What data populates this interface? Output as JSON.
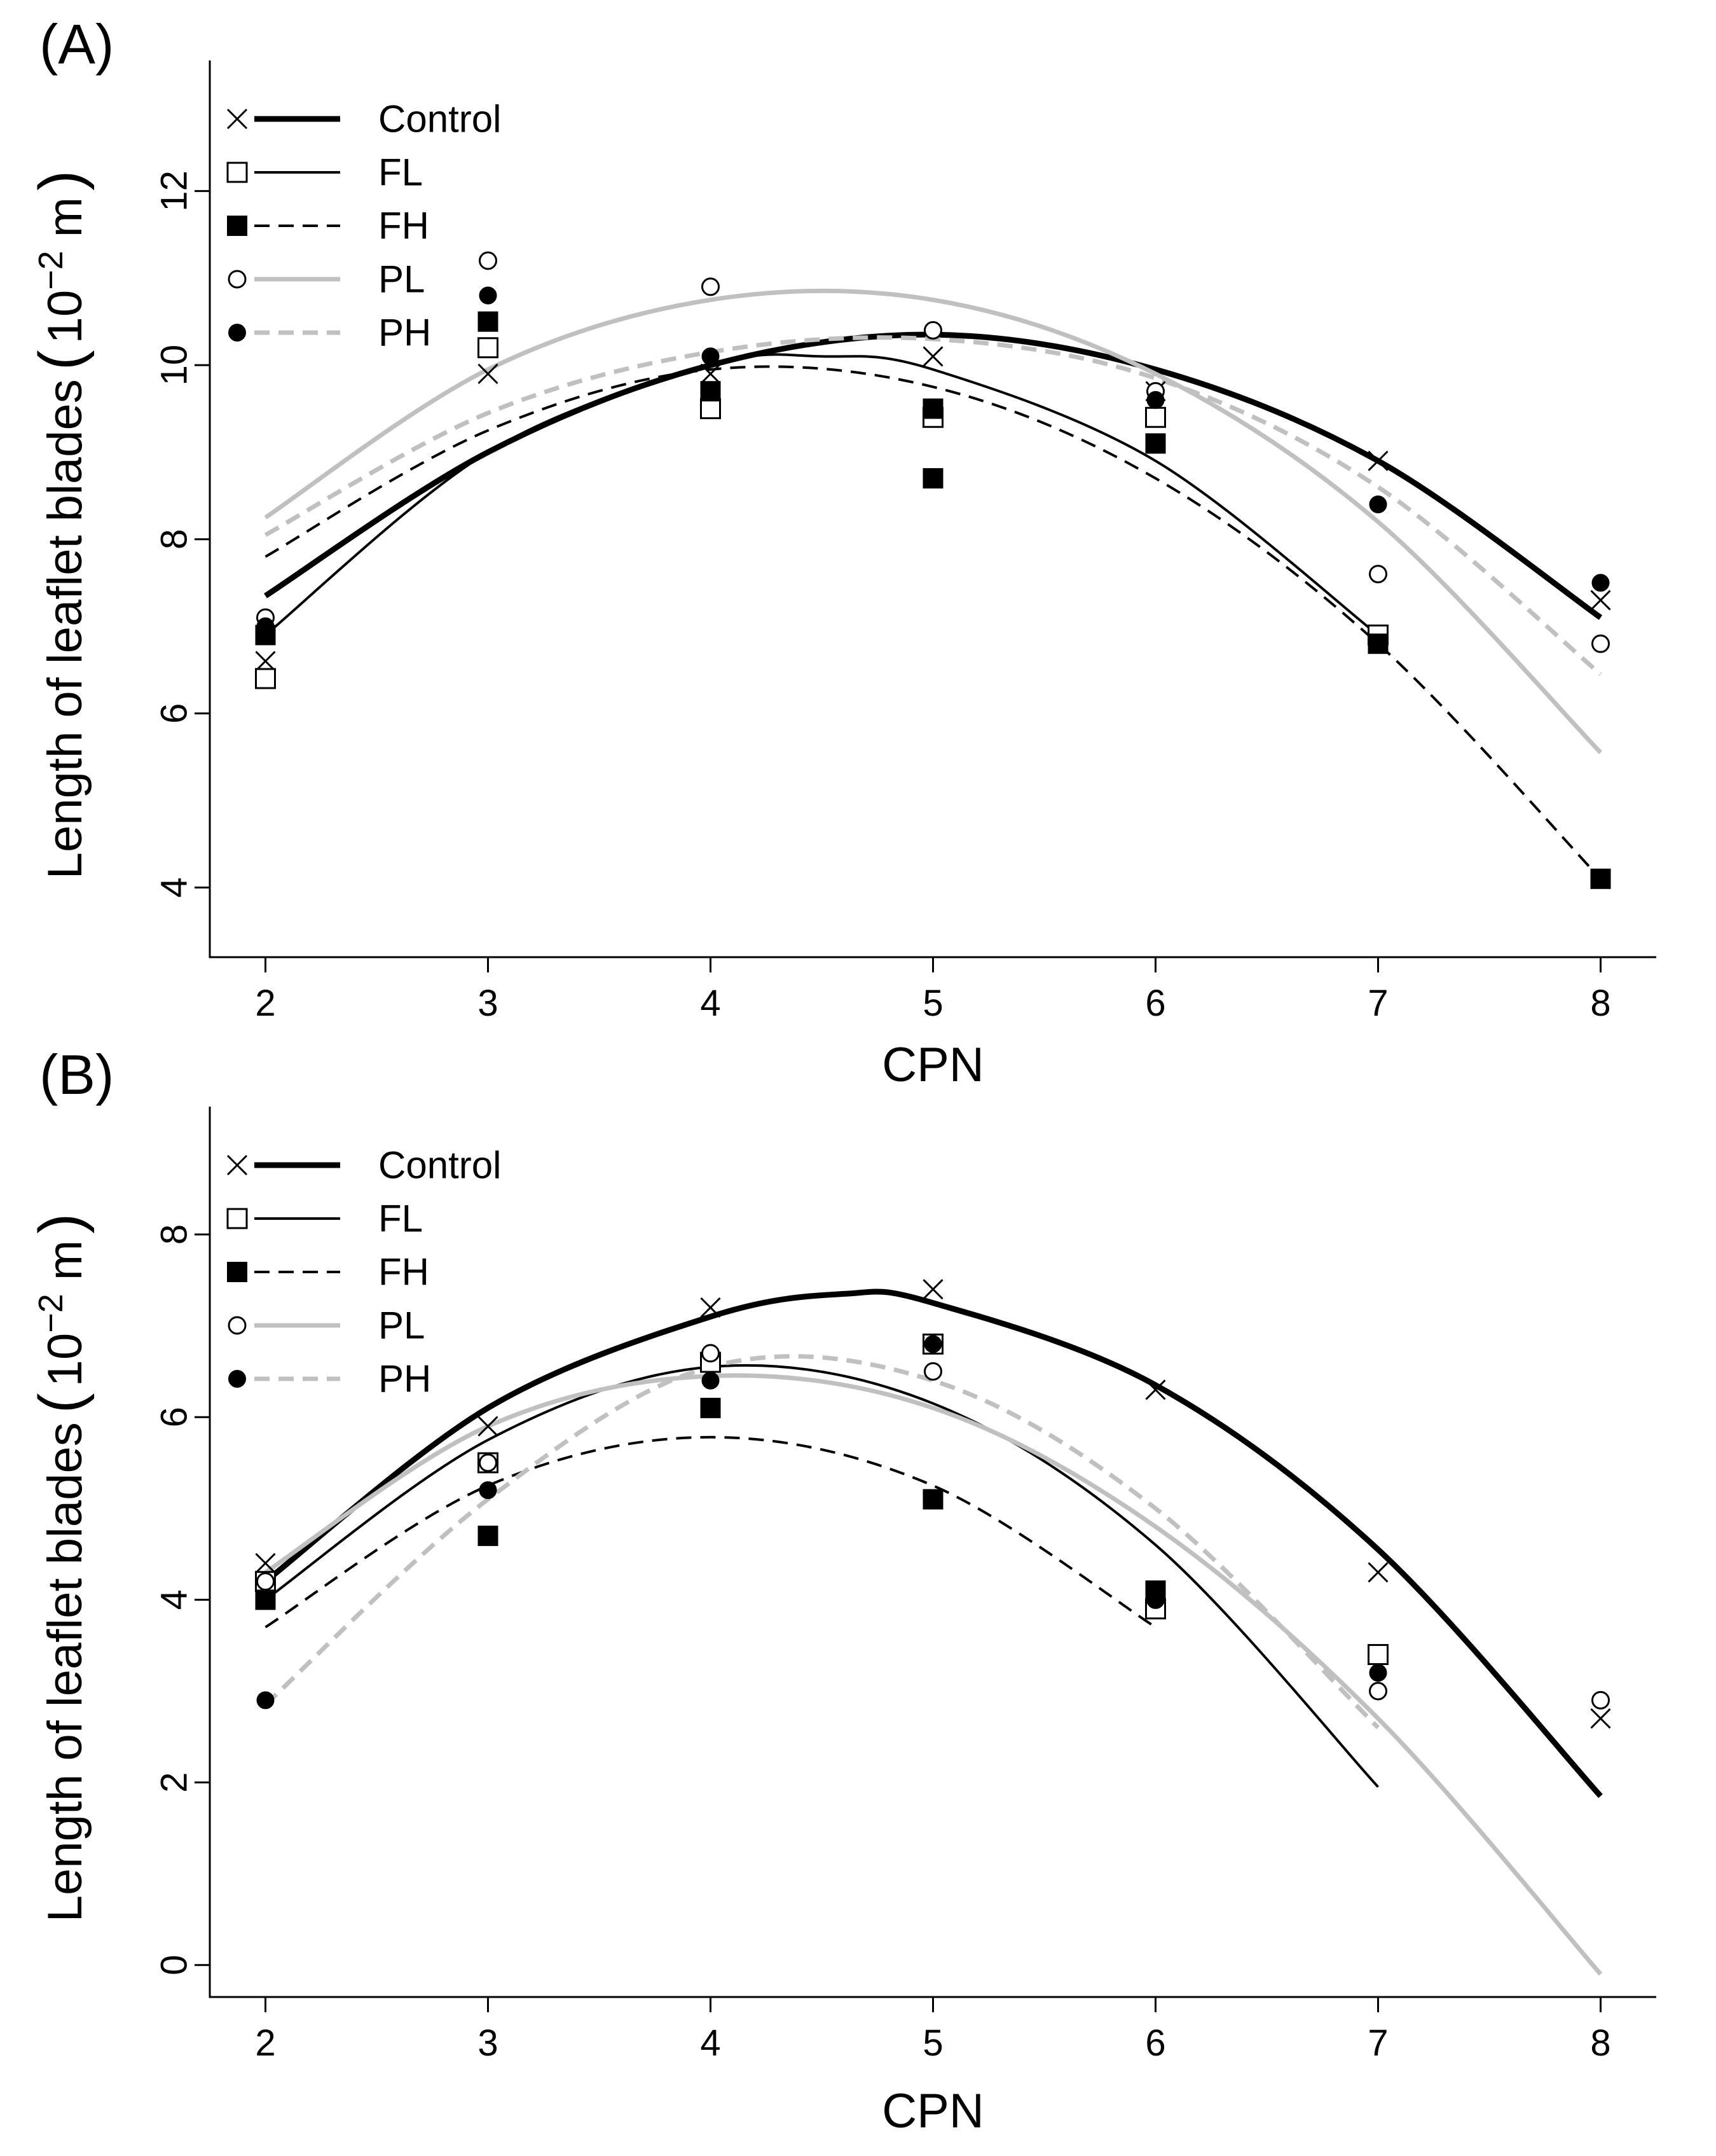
{
  "figure": {
    "xlabel": "CPN",
    "ylabel_text": "Length of leaflet blades",
    "ylabel_unit_base": "10",
    "ylabel_unit_exp": "−2",
    "ylabel_unit_suffix": " m",
    "paren_open": "(",
    "paren_close": ")"
  },
  "legend": [
    {
      "name": "Control",
      "marker": "x-marker",
      "line": "solid",
      "color": "#000000",
      "weight": "thick"
    },
    {
      "name": "FL",
      "marker": "open-square",
      "line": "solid",
      "color": "#000000",
      "weight": "thin"
    },
    {
      "name": "FH",
      "marker": "filled-square",
      "line": "dashed",
      "color": "#000000",
      "weight": "thin"
    },
    {
      "name": "PL",
      "marker": "open-circle",
      "line": "solid",
      "color": "#c0c0c0",
      "weight": "medium"
    },
    {
      "name": "PH",
      "marker": "filled-circle",
      "line": "dashed",
      "color": "#c0c0c0",
      "weight": "medium"
    }
  ],
  "chart_data": [
    {
      "type": "scatter",
      "panel_label": "(A)",
      "xlabel": "CPN",
      "ylabel": "Length of leaflet blades (10−2 m)",
      "xlim": [
        1.75,
        8.25
      ],
      "ylim": [
        3.2,
        13.5
      ],
      "x_ticks": [
        2,
        3,
        4,
        5,
        6,
        7,
        8
      ],
      "y_ticks": [
        4,
        6,
        8,
        10,
        12
      ],
      "grid": false,
      "legend_position": "top-left",
      "series": [
        {
          "name": "Control",
          "x": [
            2,
            3,
            4,
            5,
            6,
            7,
            8
          ],
          "y": [
            6.6,
            9.9,
            9.9,
            10.1,
            9.7,
            8.9,
            7.3
          ],
          "fit": {
            "x": [
              2,
              3,
              4,
              5,
              6,
              7,
              8
            ],
            "y": [
              7.35,
              9.0,
              10.0,
              10.35,
              9.95,
              8.9,
              7.1
            ]
          }
        },
        {
          "name": "FL",
          "x": [
            2,
            3,
            4,
            5,
            6,
            7
          ],
          "y": [
            6.4,
            10.2,
            9.5,
            9.4,
            9.4,
            6.9
          ],
          "fit": {
            "x": [
              2,
              3,
              4,
              4.5,
              5,
              6,
              7
            ],
            "y": [
              6.9,
              9.0,
              10.0,
              10.1,
              9.95,
              8.9,
              6.9
            ]
          }
        },
        {
          "name": "FH",
          "x": [
            2,
            3,
            4,
            5,
            5,
            6,
            7,
            8
          ],
          "y": [
            6.9,
            10.5,
            9.7,
            9.5,
            8.7,
            9.1,
            6.8,
            4.1
          ],
          "fit": {
            "x": [
              2,
              3,
              4,
              5,
              6,
              7,
              8
            ],
            "y": [
              7.8,
              9.25,
              9.95,
              9.75,
              8.7,
              6.8,
              4.1
            ]
          }
        },
        {
          "name": "PL",
          "x": [
            2,
            3,
            4,
            5,
            6,
            7,
            8
          ],
          "y": [
            7.1,
            11.2,
            10.9,
            10.4,
            9.7,
            7.6,
            6.8
          ],
          "fit": {
            "x": [
              2,
              3,
              4,
              5,
              6,
              7,
              8
            ],
            "y": [
              8.25,
              9.95,
              10.75,
              10.75,
              9.9,
              8.2,
              5.55
            ]
          }
        },
        {
          "name": "PH",
          "x": [
            2,
            3,
            4,
            5,
            6,
            7,
            8
          ],
          "y": [
            7.0,
            10.8,
            10.1,
            9.5,
            9.6,
            8.4,
            7.5
          ],
          "fit": {
            "x": [
              2,
              3,
              4,
              5,
              6,
              7,
              8
            ],
            "y": [
              8.05,
              9.45,
              10.15,
              10.3,
              9.85,
              8.6,
              6.45
            ]
          }
        }
      ]
    },
    {
      "type": "scatter",
      "panel_label": "(B)",
      "xlabel": "CPN",
      "ylabel": "Length of leaflet blades (10−2 m)",
      "xlim": [
        1.75,
        8.25
      ],
      "ylim": [
        -0.35,
        9.4
      ],
      "x_ticks": [
        2,
        3,
        4,
        5,
        6,
        7,
        8
      ],
      "y_ticks": [
        0,
        2,
        4,
        6,
        8
      ],
      "grid": false,
      "legend_position": "top-left",
      "series": [
        {
          "name": "Control",
          "x": [
            2,
            3,
            4,
            5,
            6,
            7,
            8
          ],
          "y": [
            4.4,
            5.9,
            7.2,
            7.4,
            6.3,
            4.3,
            2.7
          ],
          "fit": {
            "x": [
              2,
              3,
              4,
              4.6,
              5,
              6,
              7,
              8
            ],
            "y": [
              4.2,
              6.1,
              7.1,
              7.35,
              7.25,
              6.35,
              4.55,
              1.85
            ]
          }
        },
        {
          "name": "FL",
          "x": [
            2,
            3,
            4,
            5,
            6,
            7
          ],
          "y": [
            4.2,
            5.5,
            6.6,
            6.8,
            3.9,
            3.4
          ],
          "fit": {
            "x": [
              2,
              3,
              4,
              5,
              6,
              7
            ],
            "y": [
              4.0,
              5.75,
              6.55,
              6.15,
              4.6,
              1.95
            ]
          }
        },
        {
          "name": "FH",
          "x": [
            2,
            3,
            4,
            5,
            6
          ],
          "y": [
            4.0,
            4.7,
            6.1,
            5.1,
            4.1
          ],
          "fit": {
            "x": [
              2,
              3,
              4,
              5,
              6
            ],
            "y": [
              3.7,
              5.25,
              5.78,
              5.25,
              3.7
            ]
          }
        },
        {
          "name": "PL",
          "x": [
            2,
            3,
            4,
            5,
            6,
            7,
            8
          ],
          "y": [
            4.2,
            5.5,
            6.7,
            6.5,
            4.0,
            3.0,
            2.9
          ],
          "fit": {
            "x": [
              2,
              3,
              4,
              5,
              6,
              7,
              8
            ],
            "y": [
              4.3,
              5.9,
              6.45,
              6.1,
              4.8,
              2.7,
              -0.1
            ]
          }
        },
        {
          "name": "PH",
          "x": [
            2,
            3,
            4,
            5,
            6,
            7
          ],
          "y": [
            2.9,
            5.2,
            6.4,
            6.8,
            4.0,
            3.2
          ],
          "fit": {
            "x": [
              2,
              3,
              4,
              5,
              6,
              7
            ],
            "y": [
              2.85,
              5.1,
              6.55,
              6.4,
              5.0,
              2.6
            ]
          }
        }
      ]
    }
  ]
}
